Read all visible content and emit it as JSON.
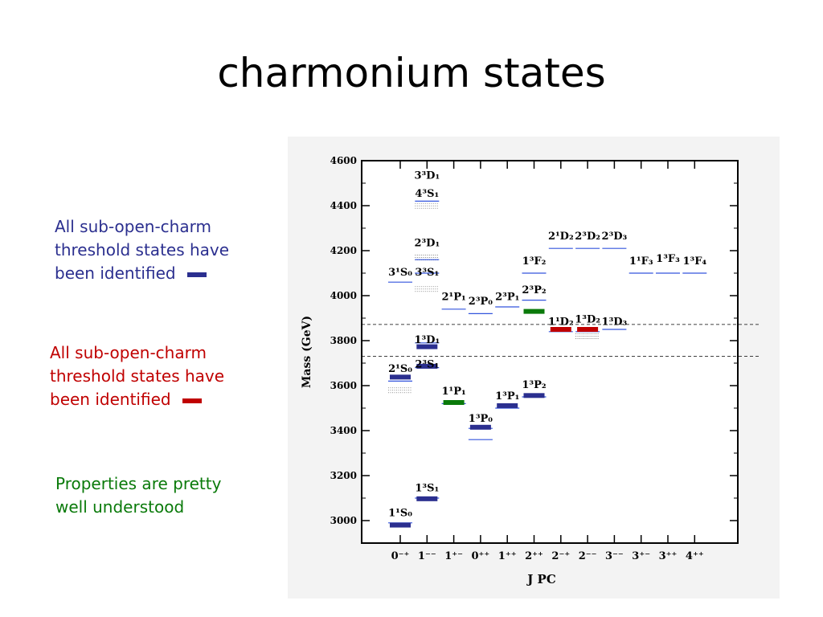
{
  "slide": {
    "title": "charmonium states",
    "notes": [
      {
        "text_lines": [
          "All sub-open-charm",
          "threshold states have",
          "been identified"
        ],
        "color": "#2b2f8f",
        "marker": "blue bar"
      },
      {
        "text_lines": [
          "All sub-open-charm",
          "threshold states have",
          "been identified"
        ],
        "color": "#c00000",
        "marker": "red bar"
      },
      {
        "text_lines": [
          "Properties are pretty",
          "well understood"
        ],
        "color": "#0a7a0a"
      }
    ]
  },
  "chart_data": {
    "type": "level-diagram",
    "xlabel": "J PC",
    "ylabel": "Mass (GeV)",
    "ylim": [
      2900,
      4600
    ],
    "yticks": [
      3000,
      3200,
      3400,
      3600,
      3800,
      4000,
      4200,
      4400,
      4600
    ],
    "categories": [
      "0⁻⁺",
      "1⁻⁻",
      "1⁺⁻",
      "0⁺⁺",
      "1⁺⁺",
      "2⁺⁺",
      "2⁻⁺",
      "2⁻⁻",
      "3⁻⁻",
      "3⁺⁻",
      "3⁺⁺",
      "4⁺⁺"
    ],
    "thresholds": [
      3730,
      3872
    ],
    "colors": {
      "observed_below": "#2b2f8f",
      "observed_above": "#c00000",
      "observed_ok": "#0a7a0a",
      "theory": "#3355dd"
    },
    "observed": [
      {
        "state": "1¹S₀",
        "col": 0,
        "mass": 2980,
        "group": "ok"
      },
      {
        "state": "1³S₁",
        "col": 1,
        "mass": 3097,
        "group": "ok"
      },
      {
        "state": "2¹S₀",
        "col": 0,
        "mass": 3638,
        "group": "below"
      },
      {
        "state": "2³S₁",
        "col": 1,
        "mass": 3686,
        "group": "below"
      },
      {
        "state": "1³D₁",
        "col": 1,
        "mass": 3773,
        "group": "below"
      },
      {
        "state": "1¹P₁",
        "col": 2,
        "mass": 3525,
        "group": "green"
      },
      {
        "state": "1³P₀",
        "col": 3,
        "mass": 3415,
        "group": "below"
      },
      {
        "state": "1³P₁",
        "col": 4,
        "mass": 3511,
        "group": "below"
      },
      {
        "state": "1³P₂",
        "col": 5,
        "mass": 3556,
        "group": "below"
      },
      {
        "state": "2³P₂",
        "col": 5,
        "mass": 3930,
        "group": "green"
      },
      {
        "state": "1¹D₂",
        "col": 6,
        "mass": 3850,
        "group": "above"
      },
      {
        "state": "1³D₂",
        "col": 7,
        "mass": 3850,
        "group": "above"
      }
    ],
    "labels": [
      {
        "text": "1¹S₀",
        "col": 0,
        "mass": 3020
      },
      {
        "text": "1³S₁",
        "col": 1,
        "mass": 3130
      },
      {
        "text": "2¹S₀",
        "col": 0,
        "mass": 3660
      },
      {
        "text": "2³S₁",
        "col": 1,
        "mass": 3680
      },
      {
        "text": "1³D₁",
        "col": 1,
        "mass": 3790
      },
      {
        "text": "3¹S₀",
        "col": 0,
        "mass": 4090
      },
      {
        "text": "3³S₁",
        "col": 1,
        "mass": 4090
      },
      {
        "text": "2³D₁",
        "col": 1,
        "mass": 4220
      },
      {
        "text": "4³S₁",
        "col": 1,
        "mass": 4440
      },
      {
        "text": "3³D₁",
        "col": 1,
        "mass": 4520
      },
      {
        "text": "1¹P₁",
        "col": 2,
        "mass": 3560
      },
      {
        "text": "2¹P₁",
        "col": 2,
        "mass": 3980
      },
      {
        "text": "1³P₀",
        "col": 3,
        "mass": 3440
      },
      {
        "text": "2³P₀",
        "col": 3,
        "mass": 3960
      },
      {
        "text": "1³P₁",
        "col": 4,
        "mass": 3540
      },
      {
        "text": "2³P₁",
        "col": 4,
        "mass": 3980
      },
      {
        "text": "1³P₂",
        "col": 5,
        "mass": 3590
      },
      {
        "text": "2³P₂",
        "col": 5,
        "mass": 4010
      },
      {
        "text": "1³F₂",
        "col": 5,
        "mass": 4140
      },
      {
        "text": "1¹D₂",
        "col": 6,
        "mass": 3870
      },
      {
        "text": "2¹D₂",
        "col": 6,
        "mass": 4250
      },
      {
        "text": "1³D₂",
        "col": 7,
        "mass": 3880
      },
      {
        "text": "2³D₂",
        "col": 7,
        "mass": 4250
      },
      {
        "text": "1³D₃",
        "col": 8,
        "mass": 3870
      },
      {
        "text": "2³D₃",
        "col": 8,
        "mass": 4250
      },
      {
        "text": "1¹F₃",
        "col": 9,
        "mass": 4140
      },
      {
        "text": "1³F₃",
        "col": 10,
        "mass": 4150
      },
      {
        "text": "1³F₄",
        "col": 11,
        "mass": 4140
      }
    ],
    "theory": [
      {
        "col": 0,
        "mass": 2990
      },
      {
        "col": 1,
        "mass": 3100
      },
      {
        "col": 0,
        "mass": 3620
      },
      {
        "col": 1,
        "mass": 3680
      },
      {
        "col": 1,
        "mass": 3790
      },
      {
        "col": 0,
        "mass": 4060
      },
      {
        "col": 1,
        "mass": 4100
      },
      {
        "col": 1,
        "mass": 4160
      },
      {
        "col": 1,
        "mass": 4420
      },
      {
        "col": 2,
        "mass": 3520
      },
      {
        "col": 2,
        "mass": 3940
      },
      {
        "col": 3,
        "mass": 3410
      },
      {
        "col": 3,
        "mass": 3920
      },
      {
        "col": 3,
        "mass": 3360
      },
      {
        "col": 4,
        "mass": 3500
      },
      {
        "col": 4,
        "mass": 3950
      },
      {
        "col": 5,
        "mass": 3550
      },
      {
        "col": 5,
        "mass": 3980
      },
      {
        "col": 5,
        "mass": 4100
      },
      {
        "col": 6,
        "mass": 3840
      },
      {
        "col": 6,
        "mass": 4210
      },
      {
        "col": 7,
        "mass": 3840
      },
      {
        "col": 7,
        "mass": 4210
      },
      {
        "col": 8,
        "mass": 3850
      },
      {
        "col": 8,
        "mass": 4210
      },
      {
        "col": 9,
        "mass": 4100
      },
      {
        "col": 10,
        "mass": 4100
      },
      {
        "col": 11,
        "mass": 4100
      }
    ],
    "predicted_bands": [
      {
        "col": 0,
        "mass": 3590
      },
      {
        "col": 1,
        "mass": 4040
      },
      {
        "col": 1,
        "mass": 4180
      },
      {
        "col": 1,
        "mass": 4410
      },
      {
        "col": 7,
        "mass": 3830
      }
    ]
  }
}
